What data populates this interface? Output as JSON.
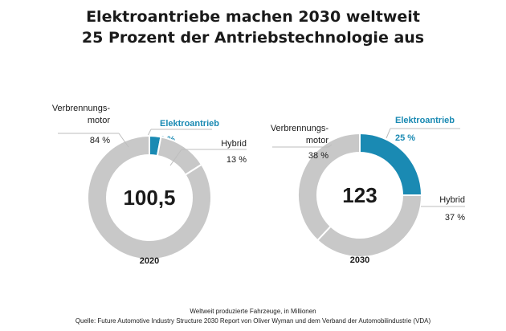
{
  "title_line1": "Elektroantriebe machen 2030 weltweit",
  "title_line2": "25 Prozent der Antriebstechnologie aus",
  "footer_line1": "Weltweit produzierte Fahrzeuge,  in Millionen",
  "footer_line2": "Quelle: Future Automotive  Industry Structure 2030 Report von Oliver Wyman und dem Verband der Automobilindustrie (VDA)",
  "colors": {
    "elektro": "#1a8ab3",
    "gray": "#c8c8c8",
    "leader": "#bdbdbd",
    "text": "#1a1a1a"
  },
  "chart_data": [
    {
      "type": "pie",
      "variant": "donut",
      "year": "2020",
      "center_label": "100,5",
      "segments": [
        {
          "name": "Elektroantrieb",
          "value": 3,
          "label": "3 %",
          "highlight": true
        },
        {
          "name": "Hybrid",
          "value": 13,
          "label": "13 %",
          "highlight": false
        },
        {
          "name": "Verbrennungs-\nmotor",
          "value": 84,
          "label": "84 %",
          "highlight": false
        }
      ]
    },
    {
      "type": "pie",
      "variant": "donut",
      "year": "2030",
      "center_label": "123",
      "segments": [
        {
          "name": "Elektroantrieb",
          "value": 25,
          "label": "25 %",
          "highlight": true
        },
        {
          "name": "Hybrid",
          "value": 37,
          "label": "37 %",
          "highlight": false
        },
        {
          "name": "Verbrennungs-\nmotor",
          "value": 38,
          "label": "38 %",
          "highlight": false
        }
      ]
    }
  ]
}
